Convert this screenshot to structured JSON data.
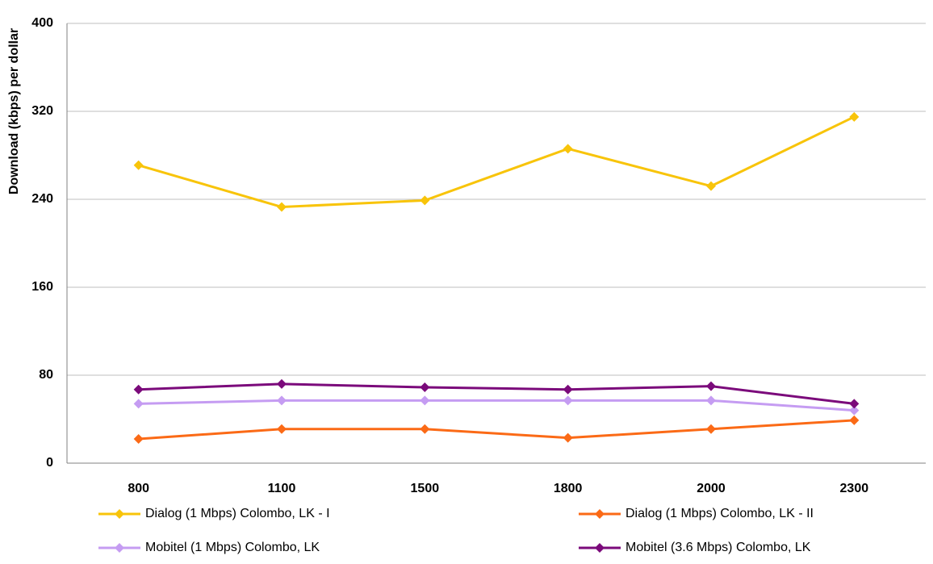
{
  "chart_data": {
    "type": "line",
    "y_label": "Download (kbps) per dollar",
    "categories": [
      "800",
      "1100",
      "1500",
      "1800",
      "2000",
      "2300"
    ],
    "series": [
      {
        "name": "Dialog (1 Mbps) Colombo, LK - I",
        "color": "#f8c40a",
        "values": [
          271,
          233,
          239,
          286,
          252,
          315
        ]
      },
      {
        "name": "Dialog (1 Mbps) Colombo, LK - II",
        "color": "#fb6a16",
        "values": [
          22,
          31,
          31,
          23,
          31,
          39
        ]
      },
      {
        "name": "Mobitel (1 Mbps) Colombo, LK",
        "color": "#c59cf2",
        "values": [
          54,
          57,
          57,
          57,
          57,
          48
        ]
      },
      {
        "name": "Mobitel (3.6 Mbps) Colombo, LK",
        "color": "#7b0a7b",
        "values": [
          67,
          72,
          69,
          67,
          70,
          54
        ]
      }
    ],
    "ylim": [
      0,
      400
    ],
    "yticks": [
      0,
      80,
      160,
      240,
      320,
      400
    ],
    "grid": true
  }
}
